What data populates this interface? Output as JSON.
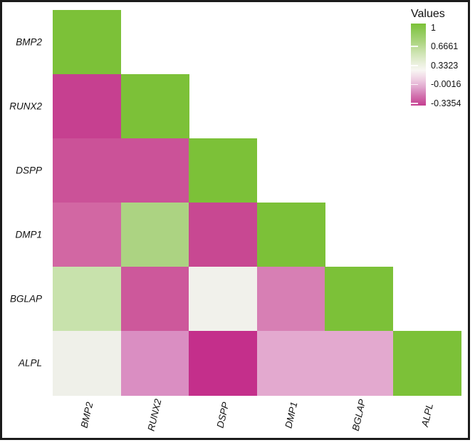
{
  "chart_data": {
    "type": "heatmap",
    "layout": "lower-triangular correlation matrix, diagonal = maximum (green)",
    "rows": [
      "BMP2",
      "RUNX2",
      "DSPP",
      "DMP1",
      "BGLAP",
      "ALPL"
    ],
    "columns": [
      "BMP2",
      "RUNX2",
      "DSPP",
      "DMP1",
      "BGLAP",
      "ALPL"
    ],
    "cell_colors": [
      [
        "#7CC138"
      ],
      [
        "#C64090",
        "#7CC138"
      ],
      [
        "#CB5298",
        "#CB5298",
        "#7CC138"
      ],
      [
        "#D267A3",
        "#ACD382",
        "#C84892",
        "#7CC138"
      ],
      [
        "#C8E2AC",
        "#CD589B",
        "#F1F1EB",
        "#D77FB4",
        "#7CC138"
      ],
      [
        "#EFF0E9",
        "#DA8EC2",
        "#C42F8B",
        "#E3A9CF",
        "#E3A9CF",
        "#7CC138"
      ]
    ],
    "cell_values_estimated_from_scale": [
      [
        1
      ],
      [
        -0.27,
        1
      ],
      [
        -0.23,
        -0.23,
        1
      ],
      [
        -0.17,
        0.63,
        -0.25,
        1
      ],
      [
        0.52,
        -0.21,
        0.25,
        -0.1,
        1
      ],
      [
        0.26,
        -0.05,
        -0.33,
        0.02,
        0.02,
        1
      ]
    ],
    "legend": {
      "title": "Values",
      "tick_labels": [
        "1",
        "0.6661",
        "0.3323",
        "-0.0016",
        "-0.3354"
      ],
      "colorscale": {
        "max_color": "#7CC138",
        "mid_color": "#FBFAF8",
        "min_color": "#C42F8B",
        "gradient_stops": [
          {
            "pos": 0.0,
            "color": "#7CC138"
          },
          {
            "pos": 0.1,
            "color": "#8FCA59"
          },
          {
            "pos": 0.22,
            "color": "#ABD47E"
          },
          {
            "pos": 0.35,
            "color": "#CCE3AF"
          },
          {
            "pos": 0.48,
            "color": "#E8EFDA"
          },
          {
            "pos": 0.57,
            "color": "#F8F6F3"
          },
          {
            "pos": 0.68,
            "color": "#EFD0E3"
          },
          {
            "pos": 0.78,
            "color": "#E0A5CD"
          },
          {
            "pos": 0.88,
            "color": "#D272AE"
          },
          {
            "pos": 1.0,
            "color": "#C53E90"
          }
        ]
      }
    }
  }
}
